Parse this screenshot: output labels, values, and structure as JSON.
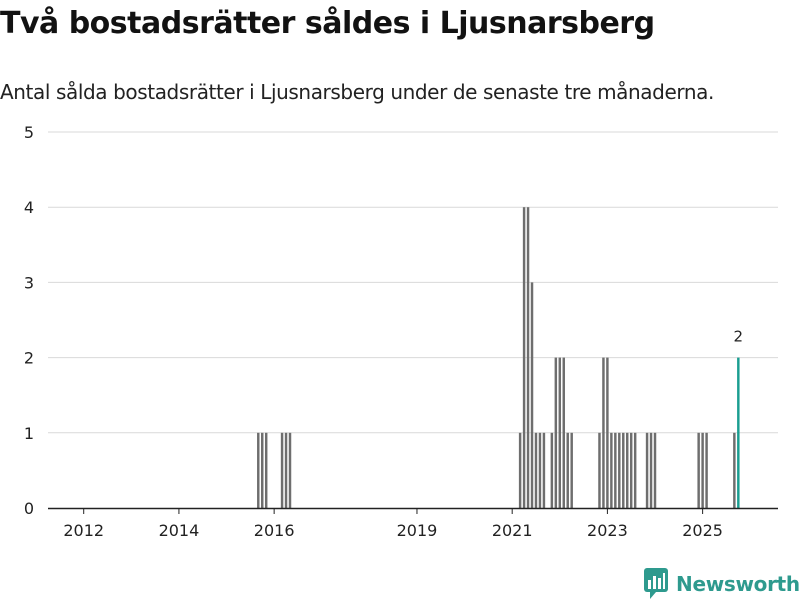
{
  "header": {
    "title": "Två bostadsrätter såldes i Ljusnarsberg",
    "subtitle": "Antal sålda bostadsrätter i Ljusnarsberg under de senaste tre månaderna."
  },
  "brand": {
    "name": "Newsworthy",
    "icon": "newsworthy-logo-icon"
  },
  "colors": {
    "bar": "#6e6e6e",
    "highlight": "#1a9e91",
    "grid": "#d9d9d9",
    "axis": "#222222",
    "brand": "#2e9a8e"
  },
  "chart_data": {
    "type": "bar",
    "title": "Två bostadsrätter såldes i Ljusnarsberg",
    "subtitle": "Antal sålda bostadsrätter i Ljusnarsberg under de senaste tre månaderna.",
    "xlabel": "",
    "ylabel": "",
    "ylim": [
      0,
      5
    ],
    "yticks": [
      "0",
      "1",
      "2",
      "3",
      "4",
      "5"
    ],
    "xlim": [
      "2011-04",
      "2026-08"
    ],
    "xticks": [
      {
        "label": "2012",
        "date": "2012-01"
      },
      {
        "label": "2014",
        "date": "2014-01"
      },
      {
        "label": "2016",
        "date": "2016-01"
      },
      {
        "label": "2019",
        "date": "2019-01"
      },
      {
        "label": "2021",
        "date": "2021-01"
      },
      {
        "label": "2023",
        "date": "2023-01"
      },
      {
        "label": "2025",
        "date": "2025-01"
      }
    ],
    "grid": true,
    "bars": [
      {
        "date": "2015-09",
        "value": 1
      },
      {
        "date": "2015-10",
        "value": 1
      },
      {
        "date": "2015-11",
        "value": 1
      },
      {
        "date": "2016-03",
        "value": 1
      },
      {
        "date": "2016-04",
        "value": 1
      },
      {
        "date": "2016-05",
        "value": 1
      },
      {
        "date": "2021-03",
        "value": 1
      },
      {
        "date": "2021-04",
        "value": 4
      },
      {
        "date": "2021-05",
        "value": 4
      },
      {
        "date": "2021-06",
        "value": 3
      },
      {
        "date": "2021-07",
        "value": 1
      },
      {
        "date": "2021-08",
        "value": 1
      },
      {
        "date": "2021-09",
        "value": 1
      },
      {
        "date": "2021-11",
        "value": 1
      },
      {
        "date": "2021-12",
        "value": 2
      },
      {
        "date": "2022-01",
        "value": 2
      },
      {
        "date": "2022-02",
        "value": 2
      },
      {
        "date": "2022-03",
        "value": 1
      },
      {
        "date": "2022-04",
        "value": 1
      },
      {
        "date": "2022-11",
        "value": 1
      },
      {
        "date": "2022-12",
        "value": 2
      },
      {
        "date": "2023-01",
        "value": 2
      },
      {
        "date": "2023-02",
        "value": 1
      },
      {
        "date": "2023-03",
        "value": 1
      },
      {
        "date": "2023-04",
        "value": 1
      },
      {
        "date": "2023-05",
        "value": 1
      },
      {
        "date": "2023-06",
        "value": 1
      },
      {
        "date": "2023-07",
        "value": 1
      },
      {
        "date": "2023-08",
        "value": 1
      },
      {
        "date": "2023-11",
        "value": 1
      },
      {
        "date": "2023-12",
        "value": 1
      },
      {
        "date": "2024-01",
        "value": 1
      },
      {
        "date": "2024-12",
        "value": 1
      },
      {
        "date": "2025-01",
        "value": 1
      },
      {
        "date": "2025-02",
        "value": 1
      },
      {
        "date": "2025-09",
        "value": 1
      },
      {
        "date": "2025-10",
        "value": 2,
        "highlight": true,
        "label": "2"
      }
    ]
  }
}
